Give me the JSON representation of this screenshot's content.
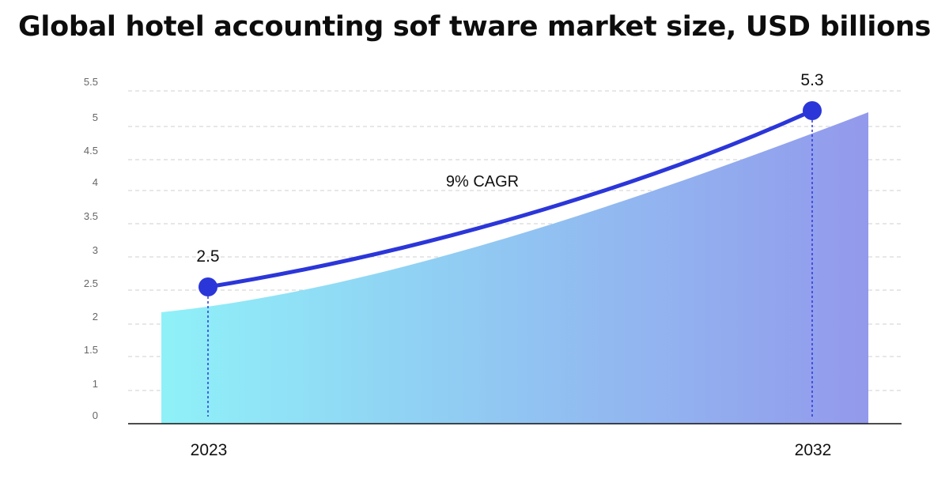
{
  "chart_data": {
    "type": "line",
    "title": "Global hotel accounting sof tware market size, USD billions",
    "categories": [
      "2023",
      "2032"
    ],
    "values": [
      2.5,
      5.3
    ],
    "data_labels": [
      "2.5",
      "5.3"
    ],
    "y_ticks": [
      "0",
      "1",
      "1.5",
      "2",
      "2.5",
      "3",
      "3.5",
      "4",
      "4.5",
      "5",
      "5.5"
    ],
    "annotation": "9% CAGR",
    "ylim": [
      0,
      5.5
    ],
    "grid": true,
    "legend": "none",
    "colors": {
      "line": "#2b36d9",
      "area_start": "#8ff1f8",
      "area_end": "#9399ec",
      "grid": "#cfcfcf",
      "marker": "#2b36d9"
    }
  }
}
